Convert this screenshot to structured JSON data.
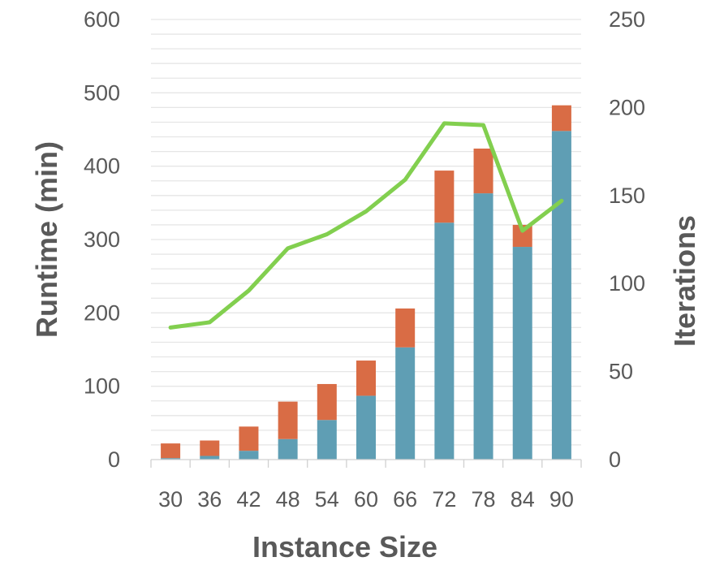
{
  "chart_data": {
    "type": "bar",
    "stacked": true,
    "xlabel": "Instance Size",
    "ylabel": "Runtime (min)",
    "y2label": "Iterations",
    "categories": [
      "30",
      "36",
      "42",
      "48",
      "54",
      "60",
      "66",
      "72",
      "78",
      "84",
      "90"
    ],
    "series": [
      {
        "type": "bar",
        "axis": "left",
        "color": "#5f9eb4",
        "values": [
          2,
          5,
          12,
          28,
          54,
          87,
          153,
          323,
          363,
          290,
          448
        ]
      },
      {
        "type": "bar",
        "axis": "left",
        "color": "#d96c45",
        "values": [
          20,
          21,
          33,
          51,
          49,
          48,
          53,
          71,
          61,
          30,
          35
        ]
      },
      {
        "type": "line",
        "axis": "right",
        "color": "#82cf4f",
        "values": [
          75,
          78,
          96,
          120,
          128,
          141,
          159,
          191,
          190,
          130,
          147
        ]
      }
    ],
    "ylim": [
      0,
      600
    ],
    "y2lim": [
      0,
      250
    ],
    "yticks": [
      "0",
      "100",
      "200",
      "300",
      "400",
      "500",
      "600"
    ],
    "y2ticks": [
      "0",
      "50",
      "100",
      "150",
      "200",
      "250"
    ],
    "grid": true
  }
}
